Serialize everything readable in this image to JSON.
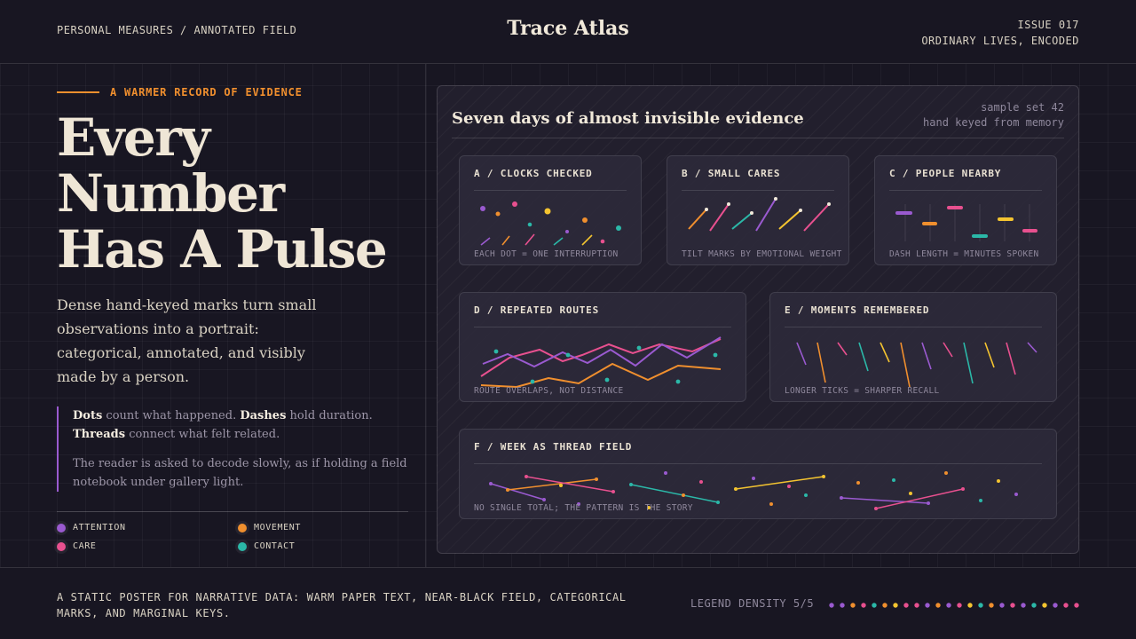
{
  "header": {
    "left": "PERSONAL MEASURES / ANNOTATED FIELD",
    "title": "Trace Atlas",
    "issue": "ISSUE 017",
    "tagline": "ORDINARY LIVES, ENCODED"
  },
  "hero": {
    "kicker": "A WARMER RECORD OF EVIDENCE",
    "headline": [
      "Every",
      "Number",
      "Has A Pulse"
    ],
    "lede": "Dense hand-keyed marks turn small observations into a portrait: categorical, annotated, and visibly made by a person.",
    "note": {
      "dots_word": "Dots",
      "dots_text": " count what happened. ",
      "dashes_word": "Dashes",
      "dashes_text": " hold duration. ",
      "threads_word": "Threads",
      "threads_text": " connect what felt related.",
      "para2": "The reader is asked to decode slowly, as if holding a field notebook under gallery light."
    }
  },
  "legend": {
    "items": [
      {
        "label": "ATTENTION",
        "color": "#9a5ad0"
      },
      {
        "label": "MOVEMENT",
        "color": "#f08f2e"
      },
      {
        "label": "CARE",
        "color": "#e8508f"
      },
      {
        "label": "CONTACT",
        "color": "#2bb8a8"
      }
    ]
  },
  "panel": {
    "title": "Seven days of almost invisible evidence",
    "meta1": "sample set 42",
    "meta2": "hand keyed from memory",
    "cards": {
      "a": {
        "title": "A / CLOCKS CHECKED",
        "foot": "EACH DOT = ONE INTERRUPTION"
      },
      "b": {
        "title": "B / SMALL CARES",
        "foot": "TILT MARKS BY EMOTIONAL WEIGHT"
      },
      "c": {
        "title": "C / PEOPLE NEARBY",
        "foot": "DASH LENGTH = MINUTES SPOKEN"
      },
      "d": {
        "title": "D / REPEATED ROUTES",
        "foot": "ROUTE OVERLAPS, NOT DISTANCE"
      },
      "e": {
        "title": "E / MOMENTS REMEMBERED",
        "foot": "LONGER TICKS = SHARPER RECALL"
      },
      "f": {
        "title": "F / WEEK AS THREAD FIELD",
        "foot": "NO SINGLE TOTAL; THE PATTERN IS THE STORY"
      }
    }
  },
  "colors": {
    "attention": "#9a5ad0",
    "movement": "#f08f2e",
    "care": "#e8508f",
    "contact": "#2bb8a8",
    "yellow": "#f4c430"
  },
  "footer": {
    "text": "A STATIC POSTER FOR NARRATIVE DATA: WARM PAPER TEXT, NEAR-BLACK FIELD, CATEGORICAL MARKS, AND MARGINAL KEYS.",
    "density": "LEGEND DENSITY 5/5"
  }
}
